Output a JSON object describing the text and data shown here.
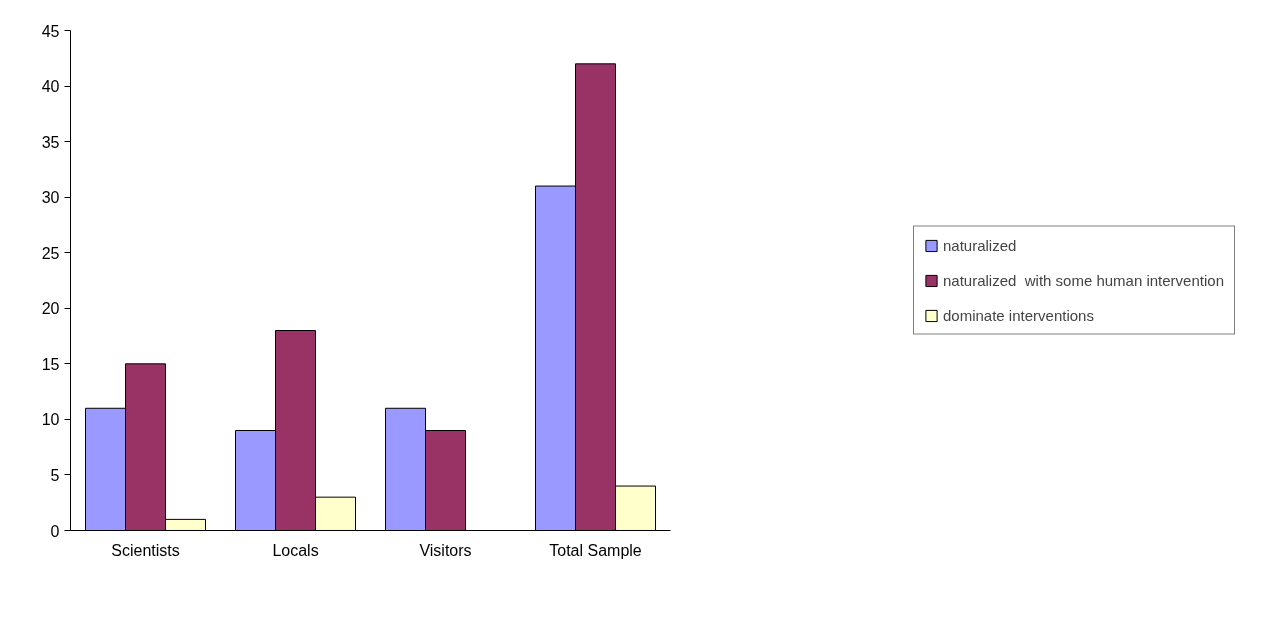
{
  "chart_data": {
    "type": "bar",
    "categories": [
      "Scientists",
      "Locals",
      "Visitors",
      "Total Sample"
    ],
    "series": [
      {
        "name": "naturalized",
        "color": "#9999ff",
        "values": [
          11,
          9,
          11,
          31
        ]
      },
      {
        "name": "naturalized  with some human intervention",
        "color": "#993366",
        "values": [
          15,
          18,
          9,
          42
        ]
      },
      {
        "name": "dominate interventions",
        "color": "#ffffcc",
        "values": [
          1,
          3,
          null,
          4
        ]
      }
    ],
    "ylim": [
      0,
      45
    ],
    "yticks": [
      0,
      5,
      10,
      15,
      20,
      25,
      30,
      35,
      40,
      45
    ],
    "grid": false,
    "legend": "right"
  }
}
